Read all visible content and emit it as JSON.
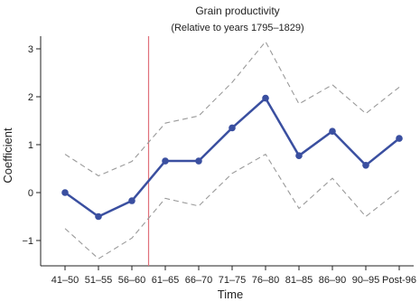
{
  "chart_data": {
    "type": "line",
    "title": "Grain productivity",
    "subtitle": "(Relative to years 1795–1829)",
    "xlabel": "Time",
    "ylabel": "Coefficient",
    "categories": [
      "41–50",
      "51–55",
      "56–60",
      "61–65",
      "66–70",
      "71–75",
      "76–80",
      "81–85",
      "86–90",
      "90–95",
      "Post-96"
    ],
    "series": [
      {
        "role": "estimate",
        "values": [
          0.0,
          -0.5,
          -0.17,
          0.66,
          0.66,
          1.35,
          1.97,
          0.77,
          1.28,
          0.57,
          1.13
        ]
      },
      {
        "role": "upper-bound",
        "values": [
          0.8,
          0.35,
          0.65,
          1.45,
          1.6,
          2.3,
          3.15,
          1.85,
          2.25,
          1.65,
          2.2
        ]
      },
      {
        "role": "lower-bound",
        "values": [
          -0.75,
          -1.38,
          -0.95,
          -0.12,
          -0.28,
          0.4,
          0.8,
          -0.33,
          0.3,
          -0.5,
          0.05
        ]
      }
    ],
    "vline_after_category_index": 2,
    "ylim": [
      -1.5,
      3.3
    ],
    "yticks": [
      -1,
      0,
      1,
      2,
      3
    ],
    "grid": false,
    "colors": {
      "estimate": "#3a4fa0",
      "bounds": "#9a9a9a",
      "vline": "#e0707a",
      "axis": "#222222"
    }
  }
}
